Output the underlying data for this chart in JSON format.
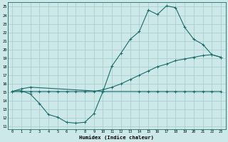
{
  "xlabel": "Humidex (Indice chaleur)",
  "xlim": [
    -0.5,
    23.5
  ],
  "ylim": [
    10.7,
    25.5
  ],
  "xticks": [
    0,
    1,
    2,
    3,
    4,
    5,
    6,
    7,
    8,
    9,
    10,
    11,
    12,
    13,
    14,
    15,
    16,
    17,
    18,
    19,
    20,
    21,
    22,
    23
  ],
  "yticks": [
    11,
    12,
    13,
    14,
    15,
    16,
    17,
    18,
    19,
    20,
    21,
    22,
    23,
    24,
    25
  ],
  "bg_color": "#cce8e8",
  "grid_color": "#aacfcf",
  "line_color": "#1a6b6b",
  "line1_x": [
    0,
    1,
    2,
    3,
    4,
    5,
    6,
    7,
    8,
    9,
    10,
    11,
    12,
    13,
    14,
    15,
    16,
    17,
    18,
    19,
    20,
    21,
    22,
    23
  ],
  "line1_y": [
    15.1,
    15.1,
    15.1,
    15.1,
    15.1,
    15.1,
    15.1,
    15.1,
    15.1,
    15.1,
    15.3,
    15.6,
    16.0,
    16.5,
    17.0,
    17.5,
    18.0,
    18.3,
    18.7,
    18.9,
    19.1,
    19.3,
    19.4,
    19.1
  ],
  "line2_x": [
    0,
    1,
    2,
    10,
    11,
    12,
    13,
    14,
    15,
    16,
    17,
    18,
    19,
    20,
    21,
    22,
    23
  ],
  "line2_y": [
    15.1,
    15.4,
    15.6,
    15.1,
    18.1,
    19.6,
    21.2,
    22.1,
    24.6,
    24.1,
    25.1,
    24.9,
    22.6,
    21.2,
    20.6,
    19.4,
    19.1
  ],
  "line3_x": [
    0,
    1,
    2,
    3,
    4,
    5,
    6,
    7,
    8,
    9,
    10,
    14,
    15,
    16,
    17,
    18,
    19,
    20,
    21,
    22,
    23
  ],
  "line3_y": [
    15.1,
    15.2,
    14.8,
    13.7,
    12.4,
    12.1,
    11.5,
    11.4,
    11.5,
    12.5,
    15.1,
    15.1,
    15.1,
    15.1,
    15.1,
    15.1,
    15.1,
    15.1,
    15.1,
    15.1,
    15.1
  ]
}
